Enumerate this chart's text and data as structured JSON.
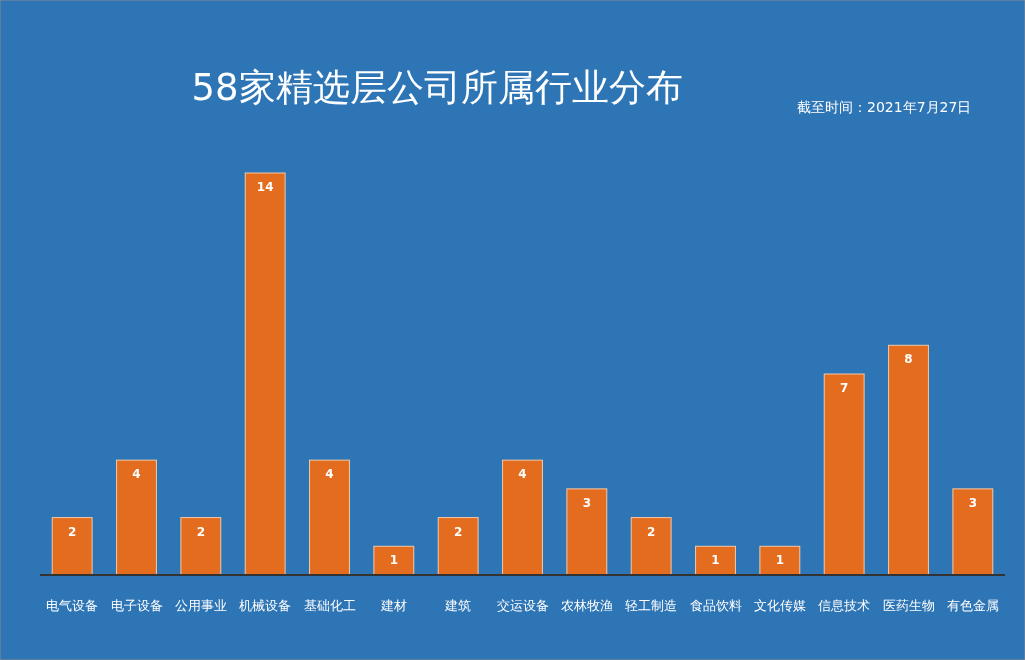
{
  "chart_data": {
    "type": "bar",
    "title": "58家精选层公司所属行业分布",
    "categories": [
      "电气设备",
      "电子设备",
      "公用事业",
      "机械设备",
      "基础化工",
      "建材",
      "建筑",
      "交运设备",
      "农林牧渔",
      "轻工制造",
      "食品饮料",
      "文化传媒",
      "信息技术",
      "医药生物",
      "有色金属"
    ],
    "values": [
      2,
      4,
      2,
      14,
      4,
      1,
      2,
      4,
      3,
      2,
      1,
      1,
      7,
      8,
      3
    ],
    "color": "#e46c1f",
    "data_labels": true,
    "annotations": [
      "截至时间：2021年7月27日"
    ]
  }
}
